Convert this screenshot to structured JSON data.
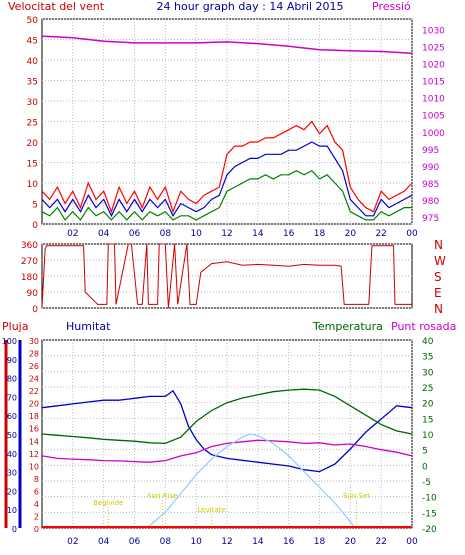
{
  "chart_data": [
    {
      "type": "line",
      "title": "24 hour graph day : 14 Abril 2015",
      "left_axis_label": "Velocitat del vent",
      "right_axis_label": "Pressió",
      "y_left_ticks": [
        0,
        5,
        10,
        15,
        20,
        25,
        30,
        35,
        40,
        45,
        50
      ],
      "ylim_left": [
        0,
        50
      ],
      "y_right_ticks": [
        975,
        980,
        985,
        990,
        995,
        1000,
        1005,
        1010,
        1015,
        1020,
        1025,
        1030
      ],
      "ylim_right": [
        973,
        1033
      ],
      "x_ticks": [
        "02",
        "04",
        "06",
        "08",
        "10",
        "12",
        "14",
        "16",
        "18",
        "20",
        "22",
        "00"
      ],
      "xlim_hours": [
        0,
        24
      ],
      "grid": true,
      "colors": {
        "gust": "#ff0000",
        "avg": "#0000cc",
        "min": "#008000",
        "pressure": "#cc00cc"
      },
      "series": [
        {
          "key": "gust",
          "x": [
            0,
            0.5,
            1,
            1.5,
            2,
            2.5,
            3,
            3.5,
            4,
            4.5,
            5,
            5.5,
            6,
            6.5,
            7,
            7.5,
            8,
            8.5,
            9,
            9.5,
            10,
            10.5,
            11,
            11.5,
            12,
            12.5,
            13,
            13.5,
            14,
            14.5,
            15,
            15.5,
            16,
            16.5,
            17,
            17.5,
            18,
            18.5,
            19,
            19.5,
            20,
            20.5,
            21,
            21.5,
            22,
            22.5,
            23,
            23.5,
            24
          ],
          "y": [
            8,
            6,
            9,
            5,
            8,
            4,
            10,
            6,
            8,
            3,
            9,
            5,
            8,
            4,
            9,
            6,
            9,
            3,
            8,
            6,
            5,
            7,
            8,
            9,
            17,
            19,
            19,
            20,
            20,
            21,
            21,
            22,
            23,
            24,
            23,
            25,
            22,
            24,
            20,
            18,
            9,
            6,
            4,
            3,
            8,
            6,
            7,
            8,
            10
          ]
        },
        {
          "key": "avg",
          "x": [
            0,
            0.5,
            1,
            1.5,
            2,
            2.5,
            3,
            3.5,
            4,
            4.5,
            5,
            5.5,
            6,
            6.5,
            7,
            7.5,
            8,
            8.5,
            9,
            9.5,
            10,
            10.5,
            11,
            11.5,
            12,
            12.5,
            13,
            13.5,
            14,
            14.5,
            15,
            15.5,
            16,
            16.5,
            17,
            17.5,
            18,
            18.5,
            19,
            19.5,
            20,
            20.5,
            21,
            21.5,
            22,
            22.5,
            23,
            23.5,
            24
          ],
          "y": [
            6,
            4,
            6,
            3,
            6,
            3,
            7,
            4,
            6,
            2,
            6,
            3,
            6,
            3,
            6,
            4,
            6,
            2,
            5,
            4,
            3,
            4,
            6,
            7,
            12,
            14,
            15,
            16,
            16,
            17,
            17,
            17,
            18,
            18,
            19,
            20,
            19,
            19,
            16,
            13,
            6,
            4,
            2,
            2,
            6,
            4,
            5,
            6,
            7
          ]
        },
        {
          "key": "min",
          "x": [
            0,
            0.5,
            1,
            1.5,
            2,
            2.5,
            3,
            3.5,
            4,
            4.5,
            5,
            5.5,
            6,
            6.5,
            7,
            7.5,
            8,
            8.5,
            9,
            9.5,
            10,
            10.5,
            11,
            11.5,
            12,
            12.5,
            13,
            13.5,
            14,
            14.5,
            15,
            15.5,
            16,
            16.5,
            17,
            17.5,
            18,
            18.5,
            19,
            19.5,
            20,
            20.5,
            21,
            21.5,
            22,
            22.5,
            23,
            23.5,
            24
          ],
          "y": [
            3,
            2,
            4,
            1,
            3,
            1,
            4,
            2,
            3,
            1,
            3,
            1,
            3,
            1,
            3,
            2,
            3,
            1,
            2,
            2,
            1,
            2,
            3,
            4,
            8,
            9,
            10,
            11,
            11,
            12,
            11,
            12,
            12,
            13,
            12,
            13,
            11,
            12,
            10,
            8,
            3,
            2,
            1,
            1,
            3,
            2,
            3,
            4,
            4
          ]
        },
        {
          "key": "pressure",
          "axis": "right",
          "x": [
            0,
            2,
            4,
            6,
            8,
            10,
            12,
            14,
            16,
            18,
            20,
            22,
            24
          ],
          "y": [
            1028,
            1027.5,
            1026.5,
            1026,
            1026,
            1026,
            1026.3,
            1025.8,
            1025,
            1024,
            1023.7,
            1023.5,
            1023
          ]
        }
      ]
    },
    {
      "type": "line",
      "right_axis_label": "N W S E N",
      "compass": [
        "N",
        "W",
        "S",
        "E",
        "N"
      ],
      "y_ticks": [
        0,
        90,
        180,
        270,
        360
      ],
      "ylim": [
        0,
        360
      ],
      "color": "#cc0000",
      "series": [
        {
          "key": "dir",
          "x": [
            0,
            0.2,
            0.3,
            2.7,
            2.8,
            3.5,
            3.6,
            4.2,
            4.3,
            4.7,
            4.8,
            5.6,
            5.8,
            6.2,
            6.5,
            6.8,
            6.9,
            7.5,
            7.6,
            8.0,
            8.2,
            8.6,
            8.8,
            9.4,
            9.6,
            10.0,
            10.3,
            11,
            12,
            13,
            14,
            15,
            16,
            17,
            18,
            19,
            19.4,
            19.6,
            20.5,
            21.2,
            21.4,
            22.8,
            22.9,
            24
          ],
          "y": [
            0,
            330,
            350,
            350,
            90,
            30,
            20,
            20,
            360,
            360,
            20,
            360,
            360,
            20,
            20,
            360,
            20,
            20,
            360,
            360,
            0,
            360,
            20,
            360,
            20,
            20,
            200,
            250,
            260,
            240,
            245,
            240,
            235,
            245,
            240,
            240,
            235,
            20,
            20,
            20,
            350,
            350,
            20,
            20
          ]
        }
      ]
    },
    {
      "type": "line",
      "labels": {
        "rain": "Pluja",
        "hum": "Humitat",
        "temp": "Temperatura",
        "dew": "Punt rosada"
      },
      "y_hum_ticks": [
        0,
        10,
        20,
        30,
        40,
        50,
        60,
        70,
        80,
        90,
        100
      ],
      "y_temp_left_ticks": [
        0,
        2,
        4,
        6,
        8,
        10,
        12,
        14,
        16,
        18,
        20,
        22,
        24,
        26,
        28,
        30
      ],
      "y_temp_right_ticks": [
        -20,
        -15,
        -10,
        -5,
        0,
        5,
        10,
        15,
        20,
        25,
        30,
        35,
        40
      ],
      "ylim_temp": [
        -20,
        40
      ],
      "ylim_hum": [
        0,
        100
      ],
      "annotations": [
        "Begivide",
        "Sun Rise",
        "Levitate",
        "Sun Set"
      ],
      "colors": {
        "hum": "#0000cc",
        "temp": "#006600",
        "dew": "#cc00cc",
        "sun": "#99ccff",
        "rain": "#ff0000"
      },
      "series": [
        {
          "key": "hum",
          "x": [
            0,
            1,
            2,
            3,
            4,
            5,
            6,
            7,
            8,
            8.5,
            9,
            9.5,
            10,
            10.5,
            11,
            12,
            13,
            14,
            15,
            16,
            17,
            18,
            19,
            20,
            21,
            22,
            23,
            24
          ],
          "y": [
            64,
            65,
            66,
            67,
            68,
            68,
            69,
            70,
            70,
            73,
            66,
            54,
            47,
            42,
            39,
            37,
            36,
            35,
            34,
            33,
            31,
            30,
            34,
            42,
            51,
            58,
            65,
            64
          ]
        },
        {
          "key": "temp",
          "x": [
            0,
            1,
            2,
            3,
            4,
            5,
            6,
            7,
            8,
            9,
            10,
            11,
            12,
            13,
            14,
            15,
            16,
            17,
            18,
            19,
            20,
            21,
            22,
            23,
            24
          ],
          "y": [
            10,
            9.6,
            9.2,
            8.8,
            8.3,
            8,
            7.7,
            7.2,
            7.0,
            9,
            14,
            17.5,
            20,
            21.5,
            22.5,
            23.5,
            24,
            24.3,
            24,
            22,
            19,
            16,
            13,
            11,
            10
          ]
        },
        {
          "key": "dew",
          "x": [
            0,
            1,
            2,
            3,
            4,
            5,
            6,
            7,
            8,
            9,
            10,
            11,
            12,
            13,
            14,
            15,
            16,
            17,
            18,
            19,
            20,
            21,
            22,
            23,
            24
          ],
          "y": [
            3,
            2.2,
            2,
            1.8,
            1.5,
            1.4,
            1.2,
            1.0,
            1.5,
            3,
            4,
            6,
            7,
            7.5,
            8,
            7.8,
            7.5,
            7,
            7.2,
            6.5,
            6.8,
            6,
            5,
            4.2,
            3
          ]
        },
        {
          "key": "sun",
          "x": [
            6.8,
            8,
            9,
            10,
            11,
            12,
            13,
            13.5,
            14,
            15,
            16,
            17,
            18,
            19,
            20,
            20.3
          ],
          "y": [
            -20,
            -15,
            -9,
            -3,
            2,
            6,
            9,
            10,
            9.5,
            7,
            3,
            -2,
            -7,
            -12,
            -18,
            -20
          ]
        }
      ]
    }
  ]
}
